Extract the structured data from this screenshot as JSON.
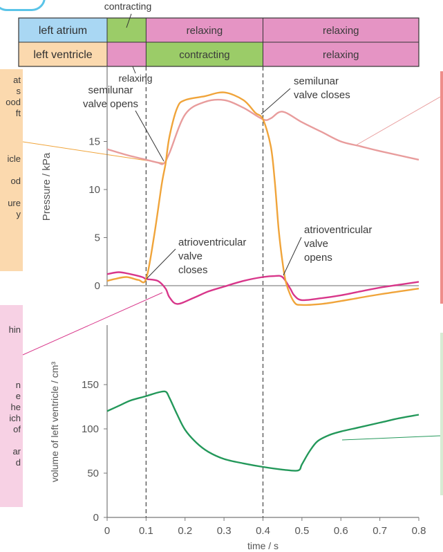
{
  "phase_table": {
    "rows": [
      {
        "label": "left atrium",
        "label_bg": "#a9d7f3",
        "cells": [
          {
            "from": 0.0,
            "to": 0.1,
            "text": "",
            "bg": "#9bcc68"
          },
          {
            "from": 0.1,
            "to": 0.4,
            "text": "relaxing",
            "bg": "#e594c4"
          },
          {
            "from": 0.4,
            "to": 0.8,
            "text": "relaxing",
            "bg": "#e594c4"
          }
        ]
      },
      {
        "label": "left ventricle",
        "label_bg": "#fbd9ae",
        "cells": [
          {
            "from": 0.0,
            "to": 0.1,
            "text": "",
            "bg": "#e594c4"
          },
          {
            "from": 0.1,
            "to": 0.4,
            "text": "contracting",
            "bg": "#9bcc68"
          },
          {
            "from": 0.4,
            "to": 0.8,
            "text": "relaxing",
            "bg": "#e594c4"
          }
        ]
      }
    ],
    "above_label": "contracting",
    "below_label": "relaxing"
  },
  "annotations": {
    "semilunar_opens": [
      "semilunar",
      "valve opens"
    ],
    "semilunar_closes": [
      "semilunar",
      "valve closes"
    ],
    "av_closes": [
      "atrioventricular",
      "valve",
      "closes"
    ],
    "av_opens": [
      "atrioventricular",
      "valve",
      "opens"
    ]
  },
  "side_boxes": {
    "left_orange_lines": [
      "at",
      "s",
      "ood",
      "ft",
      "",
      "",
      "icle",
      "",
      "od",
      "",
      "ure",
      "y"
    ],
    "left_pink_lines": [
      "hin",
      "",
      "",
      "",
      "",
      "n",
      "e",
      "he",
      "ich",
      "of",
      "",
      "ar",
      "d"
    ]
  },
  "colors": {
    "aortic": "#e89c9c",
    "ventricular": "#f0a43a",
    "atrial": "#d8368a",
    "volume": "#23985a",
    "axis": "#777777",
    "zero_line": "#888888",
    "left_box_orange": "#fbd9ae",
    "left_box_pink": "#f7d1e4",
    "right_box_red": "#ef8e8a",
    "right_box_green": "#d7ecd3",
    "top_cap_border": "#5ac4e8"
  },
  "chart_data": [
    {
      "type": "line",
      "ylabel": "Pressure / kPa",
      "xlim": [
        0,
        0.8
      ],
      "ylim": [
        0,
        20
      ],
      "yticks": [
        0,
        5,
        10,
        15
      ],
      "grid": false,
      "vlines": [
        0.1,
        0.4
      ],
      "series": [
        {
          "key": "aortic",
          "x": [
            0.0,
            0.05,
            0.1,
            0.13,
            0.145,
            0.16,
            0.2,
            0.25,
            0.3,
            0.35,
            0.4,
            0.42,
            0.45,
            0.5,
            0.55,
            0.6,
            0.65,
            0.7,
            0.8
          ],
          "y": [
            14.2,
            13.6,
            13.1,
            12.8,
            12.7,
            13.8,
            17.8,
            19.1,
            19.3,
            18.5,
            17.3,
            17.4,
            18.1,
            17.0,
            16.0,
            15.0,
            14.5,
            14.0,
            13.1
          ]
        },
        {
          "key": "ventricular",
          "x": [
            0.0,
            0.02,
            0.05,
            0.08,
            0.1,
            0.12,
            0.14,
            0.15,
            0.16,
            0.18,
            0.2,
            0.25,
            0.3,
            0.35,
            0.38,
            0.4,
            0.42,
            0.43,
            0.44,
            0.45,
            0.46,
            0.48,
            0.5,
            0.55,
            0.6,
            0.7,
            0.8
          ],
          "y": [
            0.5,
            0.7,
            0.9,
            0.6,
            0.7,
            5.0,
            10.5,
            12.7,
            15.5,
            18.5,
            19.3,
            19.7,
            20.1,
            19.3,
            18.0,
            17.3,
            14.5,
            11.0,
            6.0,
            2.5,
            0.2,
            -1.7,
            -2.0,
            -1.9,
            -1.6,
            -0.9,
            -0.3
          ]
        },
        {
          "key": "atrial",
          "x": [
            0.0,
            0.03,
            0.06,
            0.09,
            0.1,
            0.13,
            0.15,
            0.16,
            0.18,
            0.22,
            0.26,
            0.3,
            0.35,
            0.4,
            0.43,
            0.45,
            0.47,
            0.48,
            0.5,
            0.55,
            0.6,
            0.65,
            0.7,
            0.75,
            0.8
          ],
          "y": [
            1.2,
            1.4,
            1.2,
            0.9,
            0.7,
            0.5,
            -0.3,
            -1.2,
            -1.9,
            -1.3,
            -0.6,
            -0.1,
            0.5,
            0.9,
            1.0,
            0.9,
            -0.3,
            -1.0,
            -1.5,
            -1.3,
            -1.0,
            -0.6,
            -0.2,
            0.1,
            0.4
          ]
        }
      ]
    },
    {
      "type": "line",
      "ylabel": "volume of left ventricle / cm³",
      "xlabel": "time / s",
      "xlim": [
        0,
        0.8
      ],
      "ylim": [
        0,
        170
      ],
      "xticks": [
        0,
        0.1,
        0.2,
        0.3,
        0.4,
        0.5,
        0.6,
        0.7,
        0.8
      ],
      "xtick_labels": [
        "0",
        "0.1",
        "0.2",
        "0.3",
        "0.4",
        "0.5",
        "0.6",
        "0.7",
        "0.8"
      ],
      "yticks": [
        0,
        50,
        100,
        150
      ],
      "grid": false,
      "vlines": [
        0.1,
        0.4
      ],
      "series": [
        {
          "key": "volume",
          "x": [
            0.0,
            0.03,
            0.06,
            0.1,
            0.13,
            0.15,
            0.16,
            0.18,
            0.2,
            0.23,
            0.26,
            0.3,
            0.35,
            0.4,
            0.45,
            0.49,
            0.5,
            0.52,
            0.54,
            0.57,
            0.6,
            0.65,
            0.7,
            0.75,
            0.8
          ],
          "y": [
            120,
            126,
            132,
            137,
            141,
            142,
            135,
            116,
            99,
            84,
            74,
            66,
            61,
            57,
            54,
            53,
            60,
            75,
            86,
            93,
            97,
            102,
            107,
            112,
            116
          ]
        }
      ]
    }
  ]
}
